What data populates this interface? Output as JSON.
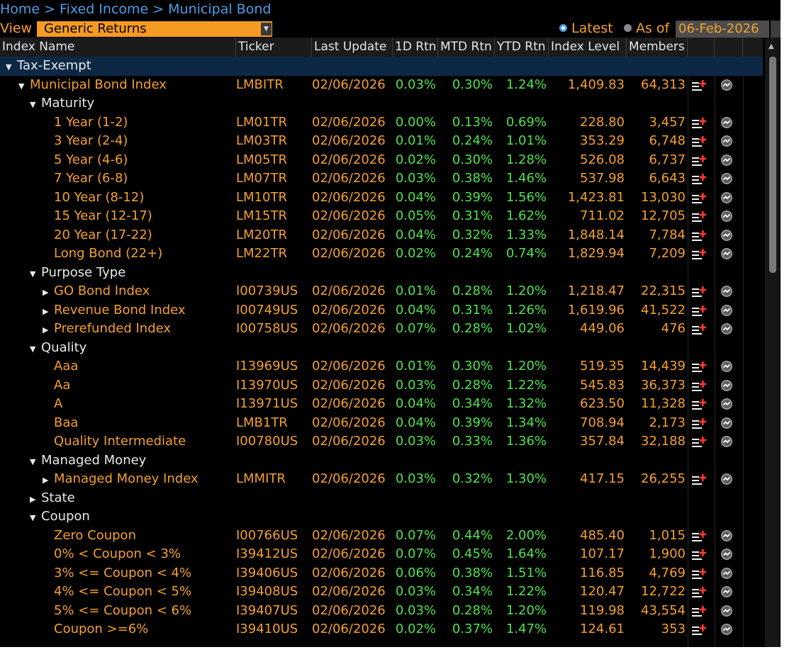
{
  "breadcrumb": {
    "items": [
      "Home",
      "Fixed Income",
      "Municipal Bond"
    ],
    "separator": ">"
  },
  "view": {
    "label": "View",
    "selected": "Generic Returns"
  },
  "date_mode": {
    "latest_label": "Latest",
    "asof_label": "As of",
    "date": "06-Feb-2026",
    "selected": "Latest"
  },
  "columns": [
    "Index Name",
    "Ticker",
    "Last Update",
    "1D Rtn",
    "MTD Rtn",
    "YTD Rtn",
    "Index Level",
    "Members"
  ],
  "colors": {
    "accent_orange": "#f4a02c",
    "positive_green": "#4ee34e",
    "link_blue": "#4a9ee8",
    "selected_row": "#0d2845"
  },
  "icons": {
    "add_to_list": "list-add-icon",
    "chart": "chart-icon"
  },
  "rows": [
    {
      "type": "group",
      "level": 0,
      "expanded": true,
      "name": "Tax-Exempt",
      "selected": true
    },
    {
      "type": "data",
      "level": 1,
      "expander": "down",
      "name": "Municipal Bond Index",
      "ticker": "LMBITR",
      "update": "02/06/2026",
      "d1": "0.03%",
      "mtd": "0.30%",
      "ytd": "1.24%",
      "level_val": "1,409.83",
      "members": "64,313"
    },
    {
      "type": "group",
      "level": 2,
      "expanded": true,
      "name": "Maturity"
    },
    {
      "type": "data",
      "level": 3,
      "name": "1 Year (1-2)",
      "ticker": "LM01TR",
      "update": "02/06/2026",
      "d1": "0.00%",
      "mtd": "0.13%",
      "ytd": "0.69%",
      "level_val": "228.80",
      "members": "3,457"
    },
    {
      "type": "data",
      "level": 3,
      "name": "3 Year (2-4)",
      "ticker": "LM03TR",
      "update": "02/06/2026",
      "d1": "0.01%",
      "mtd": "0.24%",
      "ytd": "1.01%",
      "level_val": "353.29",
      "members": "6,748"
    },
    {
      "type": "data",
      "level": 3,
      "name": "5 Year (4-6)",
      "ticker": "LM05TR",
      "update": "02/06/2026",
      "d1": "0.02%",
      "mtd": "0.30%",
      "ytd": "1.28%",
      "level_val": "526.08",
      "members": "6,737"
    },
    {
      "type": "data",
      "level": 3,
      "name": "7 Year (6-8)",
      "ticker": "LM07TR",
      "update": "02/06/2026",
      "d1": "0.03%",
      "mtd": "0.38%",
      "ytd": "1.46%",
      "level_val": "537.98",
      "members": "6,643"
    },
    {
      "type": "data",
      "level": 3,
      "name": "10 Year (8-12)",
      "ticker": "LM10TR",
      "update": "02/06/2026",
      "d1": "0.04%",
      "mtd": "0.39%",
      "ytd": "1.56%",
      "level_val": "1,423.81",
      "members": "13,030"
    },
    {
      "type": "data",
      "level": 3,
      "name": "15 Year (12-17)",
      "ticker": "LM15TR",
      "update": "02/06/2026",
      "d1": "0.05%",
      "mtd": "0.31%",
      "ytd": "1.62%",
      "level_val": "711.02",
      "members": "12,705"
    },
    {
      "type": "data",
      "level": 3,
      "name": "20 Year (17-22)",
      "ticker": "LM20TR",
      "update": "02/06/2026",
      "d1": "0.04%",
      "mtd": "0.32%",
      "ytd": "1.33%",
      "level_val": "1,848.14",
      "members": "7,784"
    },
    {
      "type": "data",
      "level": 3,
      "name": "Long Bond (22+)",
      "ticker": "LM22TR",
      "update": "02/06/2026",
      "d1": "0.02%",
      "mtd": "0.24%",
      "ytd": "0.74%",
      "level_val": "1,829.94",
      "members": "7,209"
    },
    {
      "type": "group",
      "level": 2,
      "expanded": true,
      "name": "Purpose Type"
    },
    {
      "type": "data",
      "level": 3,
      "expander": "right",
      "name": "GO Bond Index",
      "ticker": "I00739US",
      "update": "02/06/2026",
      "d1": "0.01%",
      "mtd": "0.28%",
      "ytd": "1.20%",
      "level_val": "1,218.47",
      "members": "22,315"
    },
    {
      "type": "data",
      "level": 3,
      "expander": "right",
      "name": "Revenue Bond Index",
      "ticker": "I00749US",
      "update": "02/06/2026",
      "d1": "0.04%",
      "mtd": "0.31%",
      "ytd": "1.26%",
      "level_val": "1,619.96",
      "members": "41,522"
    },
    {
      "type": "data",
      "level": 3,
      "expander": "right",
      "name": "Prerefunded Index",
      "ticker": "I00758US",
      "update": "02/06/2026",
      "d1": "0.07%",
      "mtd": "0.28%",
      "ytd": "1.02%",
      "level_val": "449.06",
      "members": "476"
    },
    {
      "type": "group",
      "level": 2,
      "expanded": true,
      "name": "Quality"
    },
    {
      "type": "data",
      "level": 3,
      "name": "Aaa",
      "ticker": "I13969US",
      "update": "02/06/2026",
      "d1": "0.01%",
      "mtd": "0.30%",
      "ytd": "1.20%",
      "level_val": "519.35",
      "members": "14,439"
    },
    {
      "type": "data",
      "level": 3,
      "name": "Aa",
      "ticker": "I13970US",
      "update": "02/06/2026",
      "d1": "0.03%",
      "mtd": "0.28%",
      "ytd": "1.22%",
      "level_val": "545.83",
      "members": "36,373"
    },
    {
      "type": "data",
      "level": 3,
      "name": "A",
      "ticker": "I13971US",
      "update": "02/06/2026",
      "d1": "0.04%",
      "mtd": "0.34%",
      "ytd": "1.32%",
      "level_val": "623.50",
      "members": "11,328"
    },
    {
      "type": "data",
      "level": 3,
      "name": "Baa",
      "ticker": "LMB1TR",
      "update": "02/06/2026",
      "d1": "0.04%",
      "mtd": "0.39%",
      "ytd": "1.34%",
      "level_val": "708.94",
      "members": "2,173"
    },
    {
      "type": "data",
      "level": 3,
      "name": "Quality Intermediate",
      "ticker": "I00780US",
      "update": "02/06/2026",
      "d1": "0.03%",
      "mtd": "0.33%",
      "ytd": "1.36%",
      "level_val": "357.84",
      "members": "32,188"
    },
    {
      "type": "group",
      "level": 2,
      "expanded": true,
      "name": "Managed Money"
    },
    {
      "type": "data",
      "level": 3,
      "expander": "right",
      "name": "Managed Money Index",
      "ticker": "LMMITR",
      "update": "02/06/2026",
      "d1": "0.03%",
      "mtd": "0.32%",
      "ytd": "1.30%",
      "level_val": "417.15",
      "members": "26,255"
    },
    {
      "type": "group",
      "level": 2,
      "expanded": false,
      "name": "State"
    },
    {
      "type": "group",
      "level": 2,
      "expanded": true,
      "name": "Coupon"
    },
    {
      "type": "data",
      "level": 3,
      "name": "Zero Coupon",
      "ticker": "I00766US",
      "update": "02/06/2026",
      "d1": "0.07%",
      "mtd": "0.44%",
      "ytd": "2.00%",
      "level_val": "485.40",
      "members": "1,015"
    },
    {
      "type": "data",
      "level": 3,
      "name": "0% < Coupon < 3%",
      "ticker": "I39412US",
      "update": "02/06/2026",
      "d1": "0.07%",
      "mtd": "0.45%",
      "ytd": "1.64%",
      "level_val": "107.17",
      "members": "1,900"
    },
    {
      "type": "data",
      "level": 3,
      "name": "3% <= Coupon < 4%",
      "ticker": "I39406US",
      "update": "02/06/2026",
      "d1": "0.06%",
      "mtd": "0.38%",
      "ytd": "1.51%",
      "level_val": "116.85",
      "members": "4,769"
    },
    {
      "type": "data",
      "level": 3,
      "name": "4% <= Coupon < 5%",
      "ticker": "I39408US",
      "update": "02/06/2026",
      "d1": "0.03%",
      "mtd": "0.34%",
      "ytd": "1.22%",
      "level_val": "120.47",
      "members": "12,722"
    },
    {
      "type": "data",
      "level": 3,
      "name": "5% <= Coupon < 6%",
      "ticker": "I39407US",
      "update": "02/06/2026",
      "d1": "0.03%",
      "mtd": "0.28%",
      "ytd": "1.20%",
      "level_val": "119.98",
      "members": "43,554"
    },
    {
      "type": "data",
      "level": 3,
      "name": "Coupon >=6%",
      "ticker": "I39410US",
      "update": "02/06/2026",
      "d1": "0.02%",
      "mtd": "0.37%",
      "ytd": "1.47%",
      "level_val": "124.61",
      "members": "353"
    }
  ]
}
